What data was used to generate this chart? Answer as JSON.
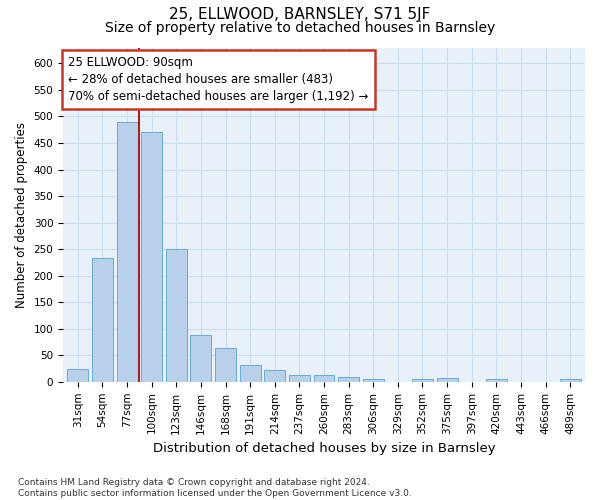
{
  "title": "25, ELLWOOD, BARNSLEY, S71 5JF",
  "subtitle": "Size of property relative to detached houses in Barnsley",
  "xlabel": "Distribution of detached houses by size in Barnsley",
  "ylabel": "Number of detached properties",
  "categories": [
    "31sqm",
    "54sqm",
    "77sqm",
    "100sqm",
    "123sqm",
    "146sqm",
    "168sqm",
    "191sqm",
    "214sqm",
    "237sqm",
    "260sqm",
    "283sqm",
    "306sqm",
    "329sqm",
    "352sqm",
    "375sqm",
    "397sqm",
    "420sqm",
    "443sqm",
    "466sqm",
    "489sqm"
  ],
  "values": [
    25,
    233,
    490,
    470,
    250,
    88,
    63,
    32,
    23,
    13,
    12,
    9,
    5,
    0,
    5,
    7,
    0,
    5,
    0,
    0,
    5
  ],
  "bar_color": "#b8d0ea",
  "bar_edge_color": "#6aaad4",
  "bar_width": 0.85,
  "vline_x": 2.5,
  "vline_color": "#a52020",
  "annotation_line1": "25 ELLWOOD: 90sqm",
  "annotation_line2": "← 28% of detached houses are smaller (483)",
  "annotation_line3": "70% of semi-detached houses are larger (1,192) →",
  "annotation_box_color": "#c0392b",
  "ylim": [
    0,
    630
  ],
  "yticks": [
    0,
    50,
    100,
    150,
    200,
    250,
    300,
    350,
    400,
    450,
    500,
    550,
    600
  ],
  "grid_color": "#ccddee",
  "bg_color": "#e8f0fa",
  "footnote": "Contains HM Land Registry data © Crown copyright and database right 2024.\nContains public sector information licensed under the Open Government Licence v3.0.",
  "title_fontsize": 11,
  "subtitle_fontsize": 10,
  "xlabel_fontsize": 9.5,
  "ylabel_fontsize": 8.5,
  "tick_fontsize": 7.5,
  "annot_fontsize": 8.5,
  "footnote_fontsize": 6.5
}
